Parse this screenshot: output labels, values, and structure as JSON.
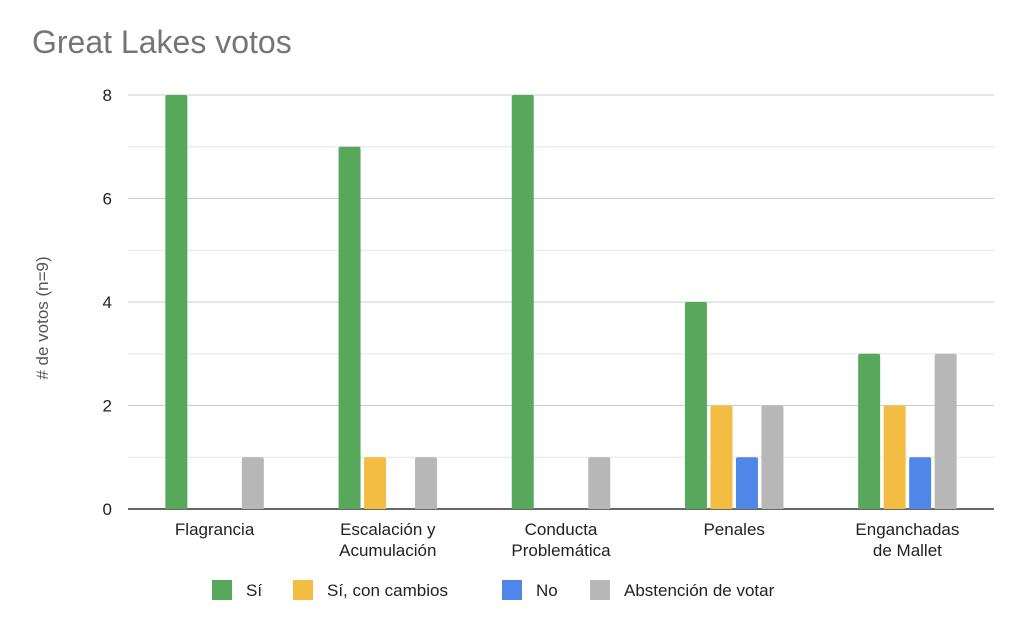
{
  "chart_data": {
    "type": "bar",
    "title": "Great Lakes votos",
    "ylabel": "# de votos (n=9)",
    "xlabel": "",
    "ylim": [
      0,
      8
    ],
    "yticks": [
      0,
      2,
      4,
      6,
      8
    ],
    "minor_gridlines": true,
    "legend_position": "bottom",
    "categories": [
      [
        "Flagrancia"
      ],
      [
        "Escalación y",
        "Acumulación"
      ],
      [
        "Conducta",
        "Problemática"
      ],
      [
        "Penales"
      ],
      [
        "Enganchadas",
        "de Mallet"
      ]
    ],
    "series": [
      {
        "name": "Sí",
        "color": "#57a85a",
        "values": [
          8,
          7,
          8,
          4,
          3
        ]
      },
      {
        "name": "Sí, con cambios",
        "color": "#f2bd42",
        "values": [
          0,
          1,
          0,
          2,
          2
        ]
      },
      {
        "name": "No",
        "color": "#4f86e8",
        "values": [
          0,
          0,
          0,
          1,
          1
        ]
      },
      {
        "name": "Abstención de votar",
        "color": "#b7b7b7",
        "values": [
          1,
          1,
          1,
          2,
          3
        ]
      }
    ]
  }
}
